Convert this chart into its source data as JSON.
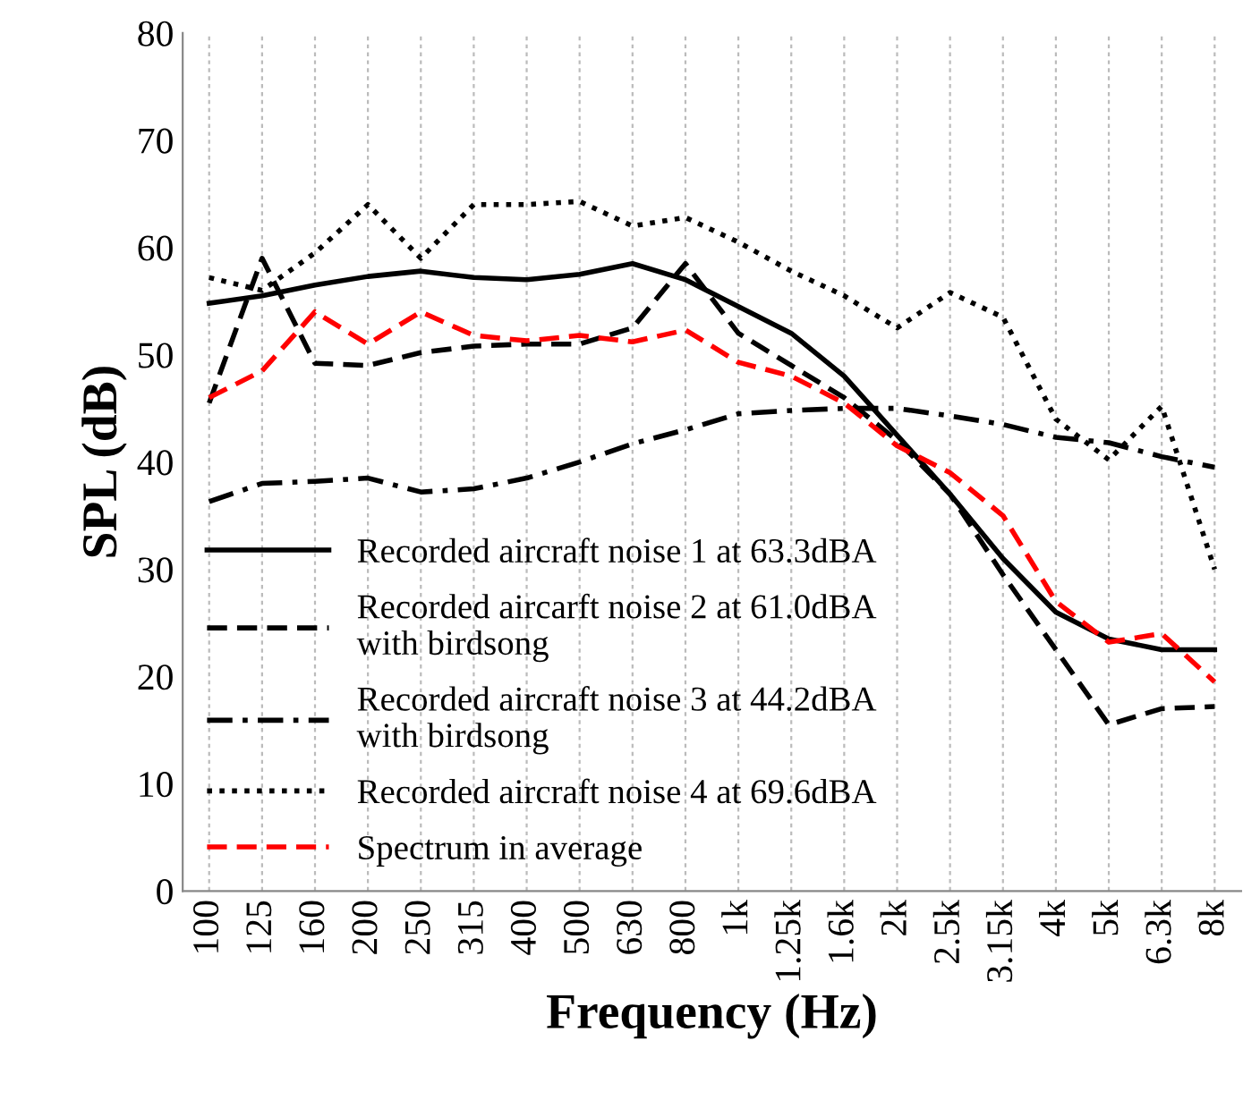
{
  "chart_data": {
    "type": "line",
    "xlabel": "Frequency (Hz)",
    "ylabel": "SPL (dB)",
    "categories": [
      "100",
      "125",
      "160",
      "200",
      "250",
      "315",
      "400",
      "500",
      "630",
      "800",
      "1k",
      "1.25k",
      "1.6k",
      "2k",
      "2.5k",
      "3.15k",
      "4k",
      "5k",
      "6.3k",
      "8k"
    ],
    "ylim": [
      0,
      80
    ],
    "yticks": [
      0,
      10,
      20,
      30,
      40,
      50,
      60,
      70,
      80
    ],
    "grid": "x",
    "legend": "bottom left",
    "marker": "none",
    "series": [
      {
        "name": "Recorded aircraft noise 1 at 63.3dBA",
        "color": "#000000",
        "line_style": "solid",
        "values": [
          54.8,
          55.5,
          56.5,
          57.3,
          57.8,
          57.2,
          57,
          57.5,
          58.5,
          57,
          54.5,
          52,
          48,
          42.5,
          37,
          31,
          26,
          23.5,
          22.5,
          22.5
        ]
      },
      {
        "name": "Recorded aircarft noise 2 at 61.0dBA\nwith birdsong",
        "color": "#000000",
        "line_style": "dashed",
        "values": [
          45.5,
          59,
          49.2,
          49,
          50.2,
          50.8,
          51,
          51,
          52.5,
          58.5,
          52,
          49,
          46,
          42,
          37,
          29.5,
          22.5,
          15.5,
          17,
          17.2
        ]
      },
      {
        "name": "Recorded aircraft noise 3 at 44.2dBA\nwith birdsong",
        "color": "#000000",
        "line_style": "dashdot",
        "values": [
          36.3,
          38,
          38.2,
          38.5,
          37.2,
          37.5,
          38.5,
          40,
          41.7,
          43,
          44.5,
          44.8,
          45,
          45,
          44.3,
          43.5,
          42.3,
          41.8,
          40.5,
          39.5
        ]
      },
      {
        "name": "Recorded aircraft noise 4 at 69.6dBA",
        "color": "#000000",
        "line_style": "dotted",
        "values": [
          57.2,
          56,
          59.5,
          64,
          59,
          64,
          64,
          64.3,
          62,
          62.8,
          60.5,
          57.8,
          55.5,
          52.5,
          55.8,
          53.5,
          44,
          40.2,
          45.2,
          30
        ]
      },
      {
        "name": "Spectrum in average",
        "color": "#ff0000",
        "line_style": "dashed",
        "values": [
          46,
          48.5,
          54,
          51,
          54,
          51.8,
          51.3,
          51.8,
          51.2,
          52.3,
          49.3,
          48,
          45.5,
          41.5,
          39,
          35,
          27,
          23.2,
          24,
          19.5
        ]
      }
    ]
  }
}
